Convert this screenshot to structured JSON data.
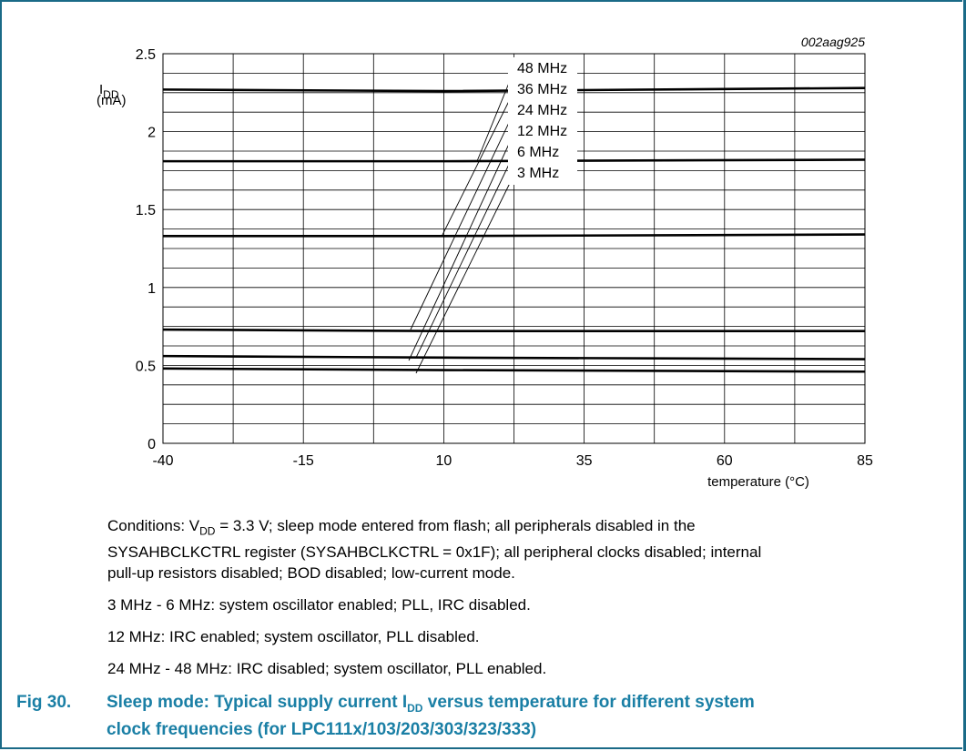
{
  "figure_id": "002aag925",
  "chart_data": {
    "type": "line",
    "xlabel": "temperature (°C)",
    "ylabel": "I",
    "ylabel_sub": "DD",
    "ylabel_unit": "(mA)",
    "xlim": [
      -40,
      85
    ],
    "ylim": [
      0,
      2.5
    ],
    "x_ticks": [
      -40,
      -15,
      10,
      35,
      60,
      85
    ],
    "x_tick_labels": [
      "-40",
      "-15",
      "10",
      "35",
      "60",
      "85"
    ],
    "y_ticks": [
      0,
      0.5,
      1,
      1.5,
      2,
      2.5
    ],
    "y_tick_labels": [
      "0",
      "0.5",
      "1",
      "1.5",
      "2",
      "2.5"
    ],
    "grid": true,
    "series": [
      {
        "name": "48 MHz",
        "x": [
          -40,
          10,
          85
        ],
        "y": [
          2.27,
          2.26,
          2.28
        ]
      },
      {
        "name": "36 MHz",
        "x": [
          -40,
          10,
          85
        ],
        "y": [
          1.81,
          1.81,
          1.82
        ]
      },
      {
        "name": "24 MHz",
        "x": [
          -40,
          10,
          85
        ],
        "y": [
          1.33,
          1.33,
          1.34
        ]
      },
      {
        "name": "12 MHz",
        "x": [
          -40,
          10,
          85
        ],
        "y": [
          0.73,
          0.72,
          0.72
        ]
      },
      {
        "name": "6 MHz",
        "x": [
          -40,
          10,
          85
        ],
        "y": [
          0.56,
          0.55,
          0.54
        ]
      },
      {
        "name": "3 MHz",
        "x": [
          -40,
          10,
          85
        ],
        "y": [
          0.48,
          0.47,
          0.46
        ]
      }
    ],
    "legend_labels": [
      "48 MHz",
      "36 MHz",
      "24 MHz",
      "12 MHz",
      "6 MHz",
      "3 MHz"
    ],
    "legend_placement": "top-center, labels with leader lines to curves"
  },
  "conditions": {
    "prefix": "Conditions: V",
    "sub": "DD",
    "rest": " = 3.3 V; sleep mode entered from flash; all peripherals disabled in the",
    "line2": "SYSAHBCLKCTRL register (SYSAHBCLKCTRL = 0x1F); all peripheral clocks disabled; internal",
    "line3": "pull-up resistors disabled; BOD disabled; low-current mode."
  },
  "notes": [
    "3 MHz - 6 MHz: system oscillator enabled; PLL, IRC disabled.",
    "12 MHz: IRC enabled; system oscillator, PLL disabled.",
    "24 MHz - 48 MHz: IRC disabled; system oscillator, PLL enabled."
  ],
  "caption": {
    "fig": "Fig 30.",
    "text_a": "Sleep mode: Typical supply current I",
    "sub": "DD",
    "text_b": " versus temperature for different system",
    "line2": "clock frequencies (for LPC111x/103/203/303/323/333)"
  }
}
